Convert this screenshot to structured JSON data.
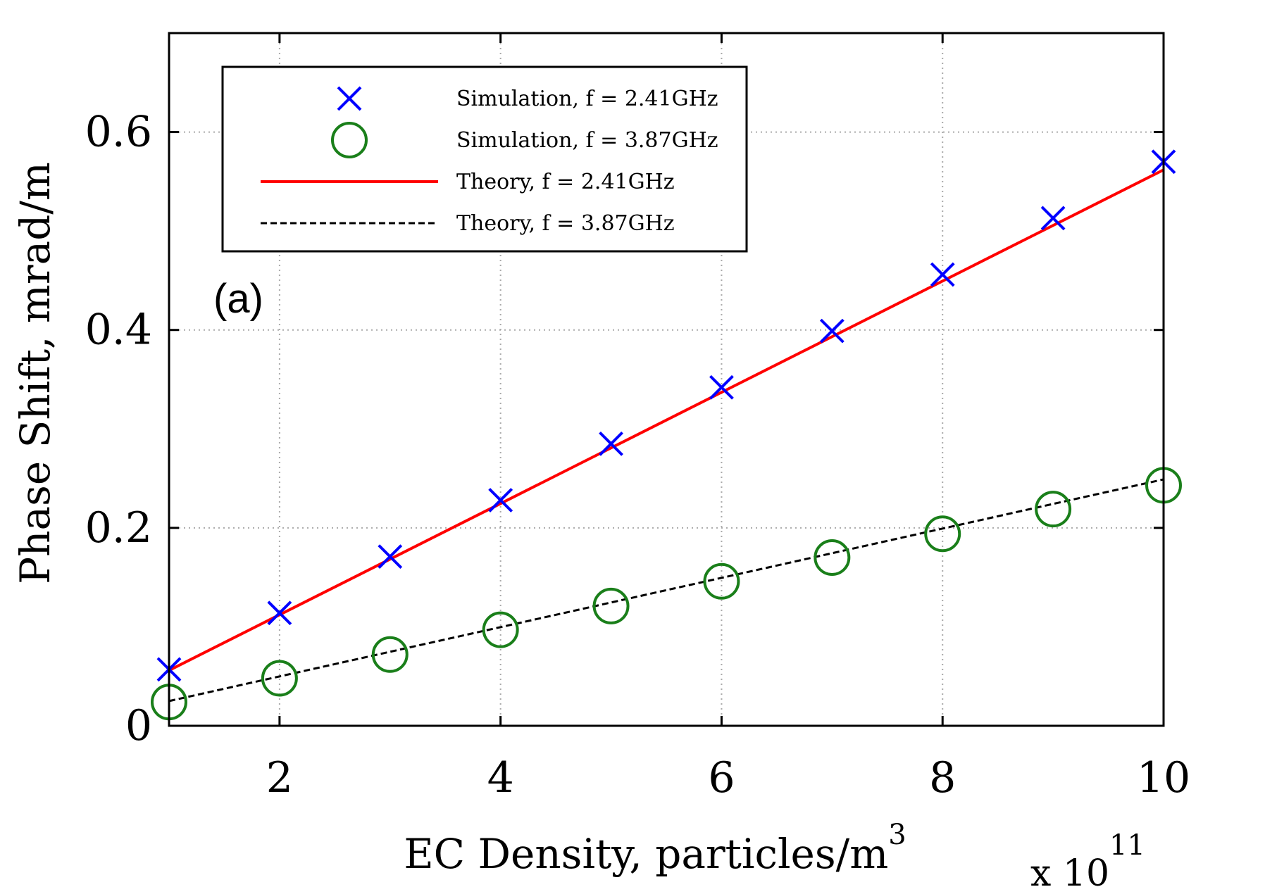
{
  "chart_data": {
    "type": "scatter",
    "xlabel": "EC Density, particles/m",
    "xlabel_superscript": "3",
    "x_multiplier_base": "x 10",
    "x_multiplier_exponent": "11",
    "ylabel": "Phase Shift, mrad/m",
    "annotation": "(a)",
    "xlim": [
      1,
      10
    ],
    "ylim": [
      0,
      0.7
    ],
    "xticks": [
      2,
      4,
      6,
      8,
      10
    ],
    "yticks": [
      0,
      0.2,
      0.4,
      0.6
    ],
    "xtick_labels": [
      "2",
      "4",
      "6",
      "8",
      "10"
    ],
    "ytick_labels": [
      "0",
      "0.2",
      "0.4",
      "0.6"
    ],
    "grid": true,
    "legend_position": "top-left",
    "x": [
      1,
      2,
      3,
      4,
      5,
      6,
      7,
      8,
      9,
      10
    ],
    "series": [
      {
        "name": "Simulation, f = 2.41GHz",
        "kind": "marker-x",
        "color": "#0000ff",
        "values": [
          0.057,
          0.114,
          0.171,
          0.228,
          0.285,
          0.342,
          0.399,
          0.456,
          0.513,
          0.57
        ]
      },
      {
        "name": "Simulation, f = 3.87GHz",
        "kind": "marker-circle",
        "color": "#1a7f1a",
        "values": [
          0.024,
          0.048,
          0.072,
          0.097,
          0.121,
          0.146,
          0.17,
          0.194,
          0.219,
          0.243
        ]
      },
      {
        "name": "Theory, f = 2.41GHz",
        "kind": "line-solid",
        "color": "#ff0000",
        "values": [
          0.056,
          0.1122,
          0.1684,
          0.2246,
          0.2808,
          0.337,
          0.3932,
          0.4494,
          0.5056,
          0.5618
        ]
      },
      {
        "name": "Theory, f = 3.87GHz",
        "kind": "line-dashed",
        "color": "#000000",
        "values": [
          0.025,
          0.0499,
          0.0748,
          0.0997,
          0.1246,
          0.1495,
          0.1744,
          0.1993,
          0.2242,
          0.249
        ]
      }
    ]
  }
}
